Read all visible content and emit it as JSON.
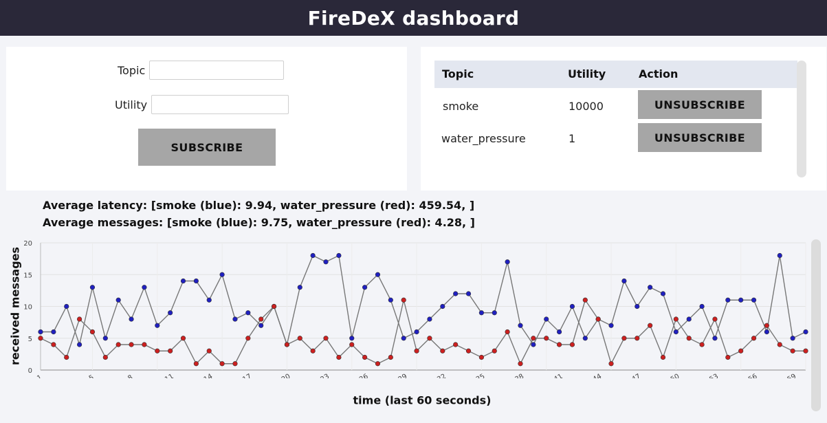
{
  "header": {
    "title": "FireDeX dashboard"
  },
  "subscribe_form": {
    "topic_label": "Topic",
    "topic_value": "",
    "utility_label": "Utility",
    "utility_value": "",
    "subscribe_button": "SUBSCRIBE"
  },
  "subscriptions": {
    "columns": [
      "Topic",
      "Utility",
      "Action"
    ],
    "rows": [
      {
        "topic": "smoke",
        "utility": "10000",
        "action": "UNSUBSCRIBE"
      },
      {
        "topic": "water_pressure",
        "utility": "1",
        "action": "UNSUBSCRIBE"
      }
    ]
  },
  "stats": {
    "latency": "Average latency: [smoke (blue): 9.94, water_pressure (red): 459.54, ]",
    "messages": "Average messages: [smoke (blue): 9.75, water_pressure (red): 4.28, ]"
  },
  "colors": {
    "header_bg": "#2a2839",
    "button_bg": "#a6a6a6",
    "series_smoke": "#2020c0",
    "series_water_pressure": "#cc2020",
    "line": "#777777"
  },
  "chart_data": {
    "type": "line",
    "xlabel": "time (last 60 seconds)",
    "ylabel": "received messages",
    "xlim": [
      1,
      60
    ],
    "ylim": [
      0,
      20
    ],
    "yticks": [
      0,
      5,
      10,
      15,
      20
    ],
    "xticks": [
      1,
      5,
      8,
      11,
      14,
      17,
      20,
      23,
      26,
      29,
      32,
      35,
      38,
      41,
      44,
      47,
      50,
      53,
      56,
      59
    ],
    "grid": true,
    "x": [
      1,
      2,
      3,
      4,
      5,
      6,
      7,
      8,
      9,
      10,
      11,
      12,
      13,
      14,
      15,
      16,
      17,
      18,
      19,
      20,
      21,
      22,
      23,
      24,
      25,
      26,
      27,
      28,
      29,
      30,
      31,
      32,
      33,
      34,
      35,
      36,
      37,
      38,
      39,
      40,
      41,
      42,
      43,
      44,
      45,
      46,
      47,
      48,
      49,
      50,
      51,
      52,
      53,
      54,
      55,
      56,
      57,
      58,
      59,
      60
    ],
    "series": [
      {
        "name": "smoke",
        "color": "blue",
        "values": [
          6,
          6,
          10,
          4,
          13,
          5,
          11,
          8,
          13,
          7,
          9,
          14,
          14,
          11,
          15,
          8,
          9,
          7,
          10,
          4,
          13,
          18,
          17,
          18,
          5,
          13,
          15,
          11,
          5,
          6,
          8,
          10,
          12,
          12,
          9,
          9,
          17,
          7,
          4,
          8,
          6,
          10,
          5,
          8,
          7,
          14,
          10,
          13,
          12,
          6,
          8,
          10,
          5,
          11,
          11,
          11,
          6,
          18,
          5,
          6
        ]
      },
      {
        "name": "water_pressure",
        "color": "red",
        "values": [
          5,
          4,
          2,
          8,
          6,
          2,
          4,
          4,
          4,
          3,
          3,
          5,
          1,
          3,
          1,
          1,
          5,
          8,
          10,
          4,
          5,
          3,
          5,
          2,
          4,
          2,
          1,
          2,
          11,
          3,
          5,
          3,
          4,
          3,
          2,
          3,
          6,
          1,
          5,
          5,
          4,
          4,
          11,
          8,
          1,
          5,
          5,
          7,
          2,
          8,
          5,
          4,
          8,
          2,
          3,
          5,
          7,
          4,
          3,
          3
        ]
      }
    ]
  }
}
